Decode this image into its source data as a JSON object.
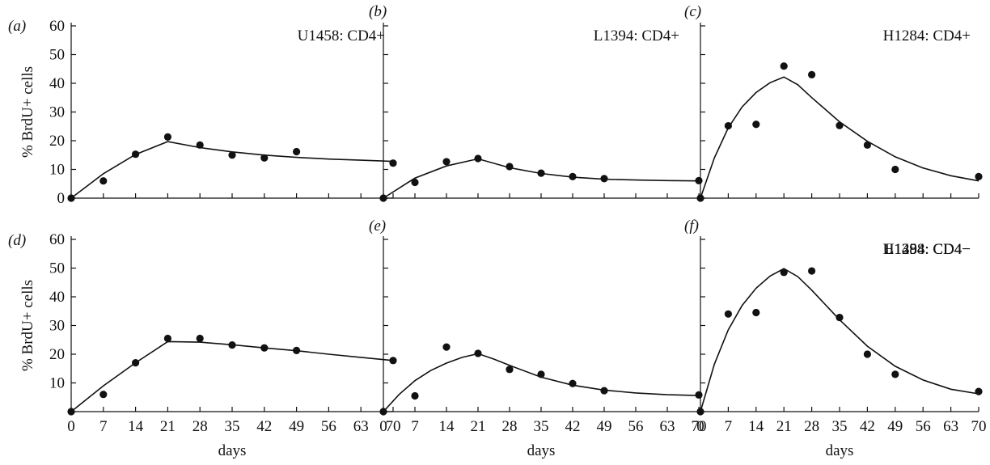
{
  "chart_data": [
    {
      "type": "scatter",
      "panel": "(a)",
      "title": "U1458: CD4+",
      "ylabel": "% BrdU+ cells",
      "xlabel": "",
      "ylim": [
        0,
        60
      ],
      "xlim": [
        0,
        70
      ],
      "yticks": [
        "0",
        "10",
        "20",
        "30",
        "40",
        "50",
        "60"
      ],
      "xticks": [],
      "series": [
        {
          "points": [
            [
              0,
              0
            ],
            [
              7,
              6
            ],
            [
              14,
              15.3
            ],
            [
              21,
              21.3
            ],
            [
              28,
              18.5
            ],
            [
              35,
              15
            ],
            [
              42,
              14
            ],
            [
              49,
              16.2
            ],
            [
              70,
              12.2
            ]
          ],
          "fit": [
            [
              0,
              0
            ],
            [
              7,
              8.5
            ],
            [
              14,
              15.2
            ],
            [
              21,
              19.7
            ],
            [
              28,
              17.6
            ],
            [
              35,
              16.1
            ],
            [
              42,
              15.0
            ],
            [
              49,
              14.2
            ],
            [
              56,
              13.6
            ],
            [
              63,
              13.2
            ],
            [
              70,
              12.8
            ]
          ]
        }
      ]
    },
    {
      "type": "scatter",
      "panel": "(b)",
      "title": "L1394: CD4+",
      "ylabel": "",
      "xlabel": "",
      "ylim": [
        0,
        60
      ],
      "xlim": [
        0,
        70
      ],
      "yticks": [],
      "xticks": [],
      "series": [
        {
          "points": [
            [
              0,
              0
            ],
            [
              7,
              5.5
            ],
            [
              14,
              12.7
            ],
            [
              21,
              13.8
            ],
            [
              28,
              11
            ],
            [
              35,
              8.7
            ],
            [
              42,
              7.5
            ],
            [
              49,
              6.8
            ],
            [
              70,
              6.1
            ]
          ],
          "fit": [
            [
              0,
              0
            ],
            [
              7,
              7.0
            ],
            [
              14,
              11.2
            ],
            [
              21,
              13.7
            ],
            [
              28,
              10.6
            ],
            [
              35,
              8.6
            ],
            [
              42,
              7.3
            ],
            [
              49,
              6.6
            ],
            [
              56,
              6.3
            ],
            [
              63,
              6.1
            ],
            [
              70,
              6.0
            ]
          ]
        }
      ]
    },
    {
      "type": "scatter",
      "panel": "(c)",
      "title": "H1284: CD4+",
      "ylabel": "",
      "xlabel": "",
      "ylim": [
        0,
        60
      ],
      "xlim": [
        0,
        70
      ],
      "yticks": [],
      "xticks": [],
      "series": [
        {
          "points": [
            [
              0,
              0
            ],
            [
              7,
              25.2
            ],
            [
              14,
              25.7
            ],
            [
              21,
              46
            ],
            [
              28,
              43
            ],
            [
              35,
              25.3
            ],
            [
              42,
              18.5
            ],
            [
              49,
              10
            ],
            [
              70,
              7.5
            ]
          ],
          "fit": [
            [
              0,
              0
            ],
            [
              3.5,
              14.0
            ],
            [
              7,
              24.5
            ],
            [
              10.5,
              31.8
            ],
            [
              14,
              36.8
            ],
            [
              17.5,
              40.2
            ],
            [
              21,
              42.2
            ],
            [
              24.5,
              39.5
            ],
            [
              28,
              35.0
            ],
            [
              35,
              26.6
            ],
            [
              42,
              19.8
            ],
            [
              49,
              14.4
            ],
            [
              56,
              10.5
            ],
            [
              63,
              7.8
            ],
            [
              70,
              6.0
            ]
          ]
        }
      ]
    },
    {
      "type": "scatter",
      "panel": "(d)",
      "title": "U1458: CD4−",
      "ylabel": "% BrdU+ cells",
      "xlabel": "days",
      "ylim": [
        0,
        60
      ],
      "xlim": [
        0,
        70
      ],
      "yticks": [
        "10",
        "20",
        "30",
        "40",
        "50",
        "60"
      ],
      "xticks": [
        "0",
        "7",
        "14",
        "21",
        "28",
        "35",
        "42",
        "49",
        "56",
        "63",
        "70"
      ],
      "series": [
        {
          "points": [
            [
              0,
              0
            ],
            [
              7,
              6
            ],
            [
              14,
              17
            ],
            [
              21,
              25.5
            ],
            [
              28,
              25.5
            ],
            [
              35,
              23.2
            ],
            [
              42,
              22.2
            ],
            [
              49,
              21.3
            ],
            [
              70,
              17.8
            ]
          ],
          "fit": [
            [
              0,
              0
            ],
            [
              7,
              9.0
            ],
            [
              14,
              17.0
            ],
            [
              21,
              24.4
            ],
            [
              28,
              24.2
            ],
            [
              35,
              23.3
            ],
            [
              42,
              22.2
            ],
            [
              49,
              21.2
            ],
            [
              56,
              20.0
            ],
            [
              63,
              18.9
            ],
            [
              70,
              17.8
            ]
          ]
        }
      ]
    },
    {
      "type": "scatter",
      "panel": "(e)",
      "title": "L1394: CD4−",
      "ylabel": "",
      "xlabel": "days",
      "ylim": [
        0,
        60
      ],
      "xlim": [
        0,
        70
      ],
      "yticks": [],
      "xticks": [
        "0",
        "7",
        "14",
        "21",
        "28",
        "35",
        "42",
        "49",
        "56",
        "63",
        "70"
      ],
      "series": [
        {
          "points": [
            [
              0,
              0
            ],
            [
              7,
              5.5
            ],
            [
              14,
              22.5
            ],
            [
              21,
              20.3
            ],
            [
              28,
              14.7
            ],
            [
              35,
              13
            ],
            [
              42,
              9.8
            ],
            [
              49,
              7.3
            ],
            [
              70,
              5.8
            ]
          ],
          "fit": [
            [
              0,
              0
            ],
            [
              3.5,
              6.0
            ],
            [
              7,
              10.8
            ],
            [
              10.5,
              14.3
            ],
            [
              14,
              16.9
            ],
            [
              17.5,
              18.9
            ],
            [
              21,
              20.2
            ],
            [
              24.5,
              18.3
            ],
            [
              28,
              16.1
            ],
            [
              35,
              12.0
            ],
            [
              42,
              9.2
            ],
            [
              49,
              7.5
            ],
            [
              56,
              6.5
            ],
            [
              63,
              5.9
            ],
            [
              70,
              5.6
            ]
          ]
        }
      ]
    },
    {
      "type": "scatter",
      "panel": "(f)",
      "title": "H1284: CD4−",
      "ylabel": "",
      "xlabel": "days",
      "ylim": [
        0,
        60
      ],
      "xlim": [
        0,
        70
      ],
      "yticks": [],
      "xticks": [
        "0",
        "7",
        "14",
        "21",
        "28",
        "35",
        "42",
        "49",
        "56",
        "63",
        "70"
      ],
      "series": [
        {
          "points": [
            [
              0,
              0
            ],
            [
              7,
              34
            ],
            [
              14,
              34.5
            ],
            [
              21,
              48.5
            ],
            [
              28,
              49
            ],
            [
              35,
              32.8
            ],
            [
              42,
              20
            ],
            [
              49,
              13
            ],
            [
              70,
              7
            ]
          ],
          "fit": [
            [
              0,
              0
            ],
            [
              3.5,
              16.5
            ],
            [
              7,
              28.5
            ],
            [
              10.5,
              37.0
            ],
            [
              14,
              43.0
            ],
            [
              17.5,
              47.2
            ],
            [
              21,
              49.8
            ],
            [
              24.5,
              47.0
            ],
            [
              28,
              42.3
            ],
            [
              35,
              32.0
            ],
            [
              42,
              22.8
            ],
            [
              49,
              15.8
            ],
            [
              56,
              11.0
            ],
            [
              63,
              7.8
            ],
            [
              70,
              6.2
            ]
          ]
        }
      ]
    }
  ]
}
